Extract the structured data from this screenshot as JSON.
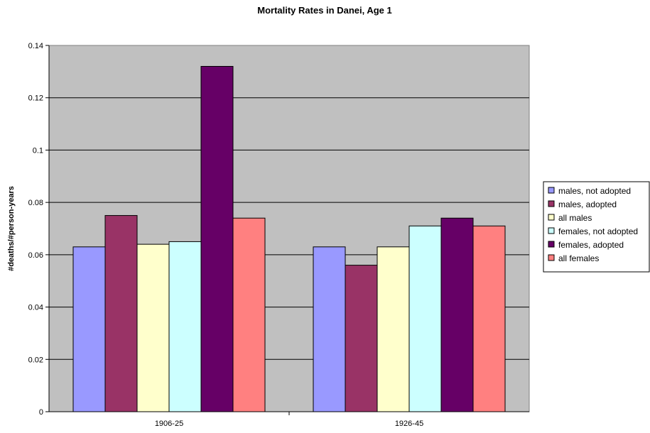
{
  "chart_data": {
    "type": "bar",
    "title": "Mortality Rates in Danei, Age 1",
    "xlabel": "",
    "ylabel": "#deaths/#person-years",
    "categories": [
      "1906-25",
      "1926-45"
    ],
    "ylim": [
      0,
      0.14
    ],
    "yticks": [
      0,
      0.02,
      0.04,
      0.06,
      0.08,
      0.1,
      0.12,
      0.14
    ],
    "ytick_labels": [
      "0",
      "0.02",
      "0.04",
      "0.06",
      "0.08",
      "0.1",
      "0.12",
      "0.14"
    ],
    "grid": true,
    "plot_background": "#c0c0c0",
    "legend_position": "right",
    "series": [
      {
        "name": "males, not adopted",
        "color": "#9999ff",
        "values": [
          0.063,
          0.063
        ]
      },
      {
        "name": "males, adopted",
        "color": "#993366",
        "values": [
          0.075,
          0.056
        ]
      },
      {
        "name": "all males",
        "color": "#ffffcc",
        "values": [
          0.064,
          0.063
        ]
      },
      {
        "name": "females, not adopted",
        "color": "#ccffff",
        "values": [
          0.065,
          0.071
        ]
      },
      {
        "name": "females, adopted",
        "color": "#660066",
        "values": [
          0.132,
          0.074
        ]
      },
      {
        "name": "all females",
        "color": "#ff8080",
        "values": [
          0.074,
          0.071
        ]
      }
    ]
  }
}
